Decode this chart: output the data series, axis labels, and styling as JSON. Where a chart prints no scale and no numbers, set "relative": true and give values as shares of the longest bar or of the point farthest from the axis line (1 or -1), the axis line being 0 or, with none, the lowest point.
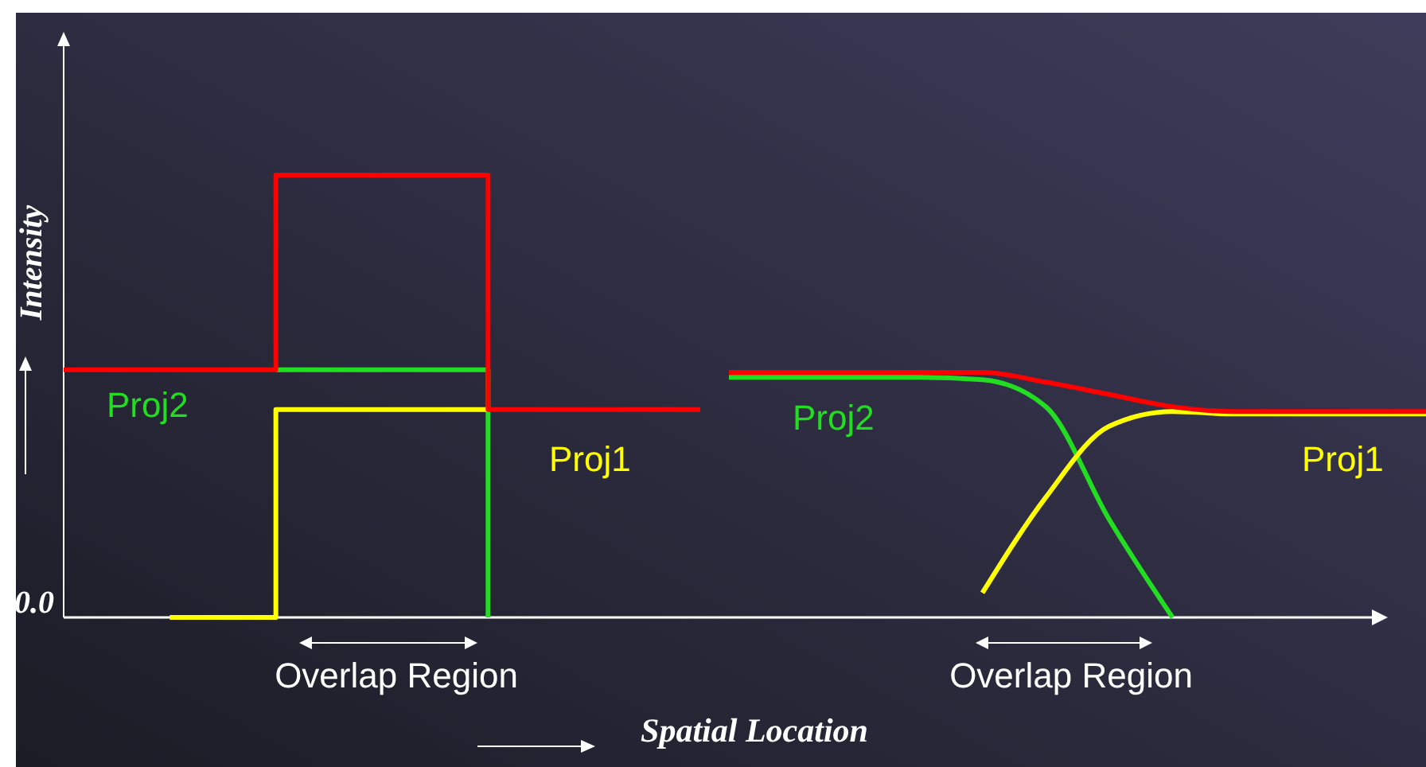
{
  "chart_data": [
    {
      "type": "step",
      "relative": true,
      "ylabel": "Intensity",
      "annotations": [
        "0.0",
        "Overlap Region"
      ],
      "categories": [
        null,
        null,
        null,
        null,
        null,
        null,
        null
      ],
      "series": [
        {
          "name": "Proj2",
          "color": "#22dd22",
          "values": [
            null,
            null,
            0.56,
            0.56,
            0,
            null,
            null
          ]
        },
        {
          "name": "Proj1",
          "color": "#ffff00",
          "values": [
            null,
            0,
            0.47,
            0.47,
            0.47,
            null,
            null
          ]
        },
        {
          "color": "#ff0000",
          "values": [
            0.56,
            0.56,
            1,
            1,
            0.47,
            0.47,
            0.47
          ]
        }
      ]
    },
    {
      "type": "line",
      "relative": true,
      "xlabel": "Spatial Location",
      "annotations": [
        "Overlap Region"
      ],
      "categories": [
        null,
        null,
        null,
        null,
        null,
        null,
        null,
        null,
        null,
        null,
        null,
        null
      ],
      "series": [
        {
          "name": "Proj2",
          "color": "#22dd22",
          "values": [
            0.98,
            0.98,
            0.98,
            0.98,
            0.97,
            0.86,
            0.4,
            0,
            null,
            null,
            null,
            null
          ]
        },
        {
          "name": "Proj1",
          "color": "#ffff00",
          "values": [
            null,
            null,
            null,
            null,
            0.1,
            0.49,
            0.78,
            0.84,
            0.83,
            0.83,
            0.83,
            0.83
          ]
        },
        {
          "color": "#ff0000",
          "values": [
            1,
            1,
            1,
            1,
            1,
            0.96,
            0.91,
            0.86,
            0.84,
            0.84,
            0.84,
            0.84
          ]
        }
      ]
    }
  ]
}
